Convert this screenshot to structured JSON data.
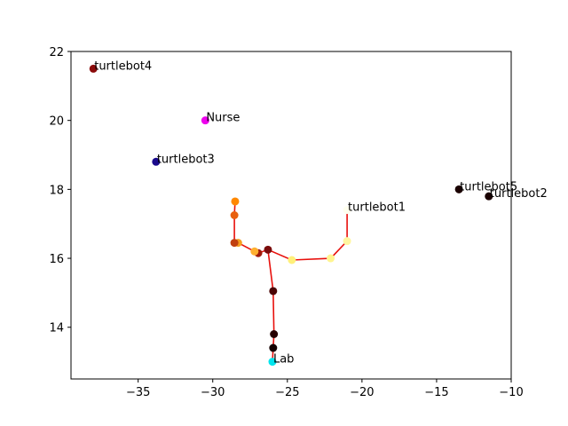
{
  "chart_data": {
    "type": "scatter",
    "title": "",
    "xlabel": "",
    "ylabel": "",
    "xlim": [
      -39.5,
      -10
    ],
    "ylim": [
      12.5,
      22
    ],
    "xticks": [
      -35,
      -30,
      -25,
      -20,
      -15,
      -10
    ],
    "yticks": [
      14,
      16,
      18,
      20,
      22
    ],
    "xtick_labels": [
      "−35",
      "−30",
      "−25",
      "−20",
      "−15",
      "−10"
    ],
    "ytick_labels": [
      "14",
      "16",
      "18",
      "20",
      "22"
    ],
    "grid": false,
    "labeled_points": [
      {
        "label": "turtlebot4",
        "x": -38.0,
        "y": 21.5,
        "color": "#8b0a0a"
      },
      {
        "label": "Nurse",
        "x": -30.5,
        "y": 20.0,
        "color": "#ee00ee"
      },
      {
        "label": "turtlebot3",
        "x": -33.8,
        "y": 18.8,
        "color": "#1a0a8c"
      },
      {
        "label": "turtlebot5",
        "x": -13.5,
        "y": 18.0,
        "color": "#1a0000"
      },
      {
        "label": "turtlebot2",
        "x": -11.5,
        "y": 17.8,
        "color": "#1a0000"
      },
      {
        "label": "turtlebot1",
        "x": -21.0,
        "y": 17.4,
        "color": "#ffffee"
      },
      {
        "label": "Lab",
        "x": -26.0,
        "y": 13.0,
        "color": "#00e5ee"
      }
    ],
    "path": {
      "color": "#e8100c",
      "branches": [
        [
          [
            -21.0,
            17.4
          ],
          [
            -21.0,
            16.5
          ],
          [
            -22.1,
            16.0
          ],
          [
            -24.7,
            15.95
          ],
          [
            -26.3,
            16.25
          ],
          [
            -26.95,
            16.15
          ],
          [
            -27.2,
            16.2
          ],
          [
            -28.3,
            16.45
          ],
          [
            -28.55,
            16.45
          ],
          [
            -28.55,
            17.25
          ],
          [
            -28.5,
            17.65
          ]
        ],
        [
          [
            -26.3,
            16.25
          ],
          [
            -25.95,
            15.05
          ],
          [
            -25.9,
            13.8
          ],
          [
            -25.95,
            13.4
          ],
          [
            -26.0,
            13.0
          ]
        ]
      ]
    },
    "path_points": [
      {
        "x": -21.0,
        "y": 16.5,
        "color": "#fff6a0"
      },
      {
        "x": -22.1,
        "y": 16.0,
        "color": "#fff590"
      },
      {
        "x": -24.7,
        "y": 15.95,
        "color": "#fff07a"
      },
      {
        "x": -26.3,
        "y": 16.25,
        "color": "#7a0c0c"
      },
      {
        "x": -26.95,
        "y": 16.15,
        "color": "#a01a0a"
      },
      {
        "x": -27.2,
        "y": 16.2,
        "color": "#ffb030"
      },
      {
        "x": -28.3,
        "y": 16.45,
        "color": "#f5a020"
      },
      {
        "x": -28.55,
        "y": 16.45,
        "color": "#c04010"
      },
      {
        "x": -28.55,
        "y": 17.25,
        "color": "#e86010"
      },
      {
        "x": -28.5,
        "y": 17.65,
        "color": "#ff8800"
      },
      {
        "x": -25.95,
        "y": 15.05,
        "color": "#4a0505"
      },
      {
        "x": -25.9,
        "y": 13.8,
        "color": "#250000"
      },
      {
        "x": -25.95,
        "y": 13.4,
        "color": "#150000"
      }
    ]
  }
}
